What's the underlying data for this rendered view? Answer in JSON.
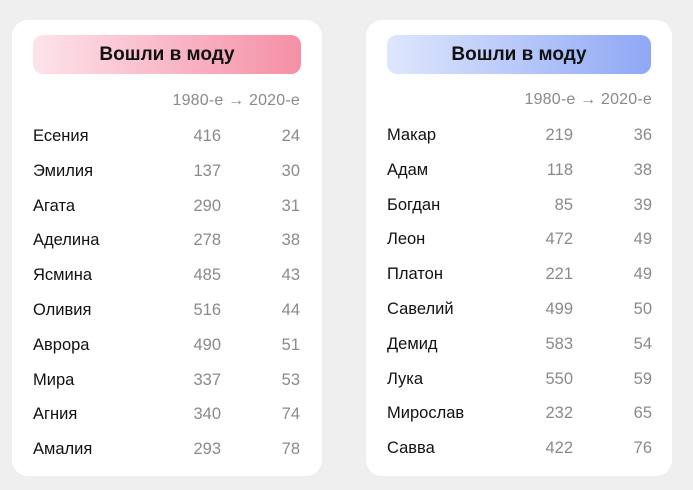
{
  "girls": {
    "title": "Вошли в моду",
    "column_header": "1980-е → 2020-е",
    "accent_from": "#fde3ea",
    "accent_to": "#f58fa6",
    "rows": [
      {
        "name": "Есения",
        "v1980": "416",
        "v2020": "24"
      },
      {
        "name": "Эмилия",
        "v1980": "137",
        "v2020": "30"
      },
      {
        "name": "Агата",
        "v1980": "290",
        "v2020": "31"
      },
      {
        "name": "Аделина",
        "v1980": "278",
        "v2020": "38"
      },
      {
        "name": "Ясмина",
        "v1980": "485",
        "v2020": "43"
      },
      {
        "name": "Оливия",
        "v1980": "516",
        "v2020": "44"
      },
      {
        "name": "Аврора",
        "v1980": "490",
        "v2020": "51"
      },
      {
        "name": "Мира",
        "v1980": "337",
        "v2020": "53"
      },
      {
        "name": "Агния",
        "v1980": "340",
        "v2020": "74"
      },
      {
        "name": "Амалия",
        "v1980": "293",
        "v2020": "78"
      }
    ]
  },
  "boys": {
    "title": "Вошли в моду",
    "column_header": "1980-е → 2020-е",
    "accent_from": "#dfe7fd",
    "accent_to": "#8fa8f5",
    "rows": [
      {
        "name": "Макар",
        "v1980": "219",
        "v2020": "36"
      },
      {
        "name": "Адам",
        "v1980": "118",
        "v2020": "38"
      },
      {
        "name": "Богдан",
        "v1980": "85",
        "v2020": "39"
      },
      {
        "name": "Леон",
        "v1980": "472",
        "v2020": "49"
      },
      {
        "name": "Платон",
        "v1980": "221",
        "v2020": "49"
      },
      {
        "name": "Савелий",
        "v1980": "499",
        "v2020": "50"
      },
      {
        "name": "Демид",
        "v1980": "583",
        "v2020": "54"
      },
      {
        "name": "Лука",
        "v1980": "550",
        "v2020": "59"
      },
      {
        "name": "Мирослав",
        "v1980": "232",
        "v2020": "65"
      },
      {
        "name": "Савва",
        "v1980": "422",
        "v2020": "76"
      }
    ]
  }
}
